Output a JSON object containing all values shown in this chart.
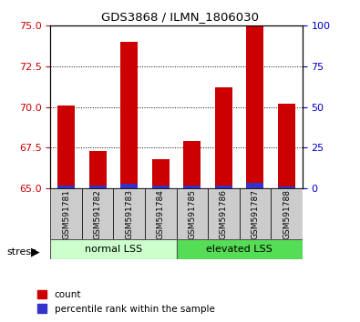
{
  "title": "GDS3868 / ILMN_1806030",
  "samples": [
    "GSM591781",
    "GSM591782",
    "GSM591783",
    "GSM591784",
    "GSM591785",
    "GSM591786",
    "GSM591787",
    "GSM591788"
  ],
  "count_values": [
    70.1,
    67.3,
    74.0,
    66.8,
    67.9,
    71.2,
    75.0,
    70.2
  ],
  "percentile_values": [
    1.5,
    1.5,
    3.0,
    1.5,
    1.5,
    1.5,
    3.6,
    1.2
  ],
  "ylim_left": [
    65,
    75
  ],
  "ylim_right": [
    0,
    100
  ],
  "yticks_left": [
    65,
    67.5,
    70,
    72.5,
    75
  ],
  "yticks_right": [
    0,
    25,
    50,
    75,
    100
  ],
  "bar_width": 0.55,
  "count_color": "#cc0000",
  "percentile_color": "#3333cc",
  "group1_label": "normal LSS",
  "group2_label": "elevated LSS",
  "stress_label": "stress",
  "legend_count": "count",
  "legend_percentile": "percentile rank within the sample",
  "group1_color": "#ccffcc",
  "group2_color": "#55dd55",
  "tick_label_color_left": "#cc0000",
  "tick_label_color_right": "#0000cc",
  "base_value": 65.0
}
